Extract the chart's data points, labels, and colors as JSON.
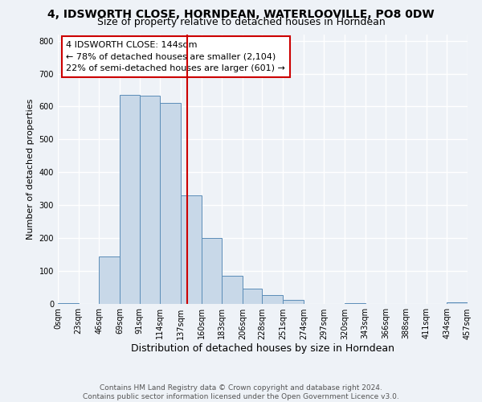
{
  "title": "4, IDSWORTH CLOSE, HORNDEAN, WATERLOOVILLE, PO8 0DW",
  "subtitle": "Size of property relative to detached houses in Horndean",
  "xlabel": "Distribution of detached houses by size in Horndean",
  "ylabel": "Number of detached properties",
  "bin_edges": [
    0,
    23,
    46,
    69,
    91,
    114,
    137,
    160,
    183,
    206,
    228,
    251,
    274,
    297,
    320,
    343,
    366,
    388,
    411,
    434,
    457
  ],
  "bin_labels": [
    "0sqm",
    "23sqm",
    "46sqm",
    "69sqm",
    "91sqm",
    "114sqm",
    "137sqm",
    "160sqm",
    "183sqm",
    "206sqm",
    "228sqm",
    "251sqm",
    "274sqm",
    "297sqm",
    "320sqm",
    "343sqm",
    "366sqm",
    "388sqm",
    "411sqm",
    "434sqm",
    "457sqm"
  ],
  "counts": [
    2,
    0,
    143,
    635,
    632,
    610,
    330,
    200,
    84,
    46,
    26,
    12,
    0,
    0,
    2,
    0,
    0,
    0,
    0,
    4
  ],
  "bar_color": "#c8d8e8",
  "bar_edge_color": "#5b8db8",
  "vline_x": 144,
  "vline_color": "#cc0000",
  "annotation_line1": "4 IDSWORTH CLOSE: 144sqm",
  "annotation_line2": "← 78% of detached houses are smaller (2,104)",
  "annotation_line3": "22% of semi-detached houses are larger (601) →",
  "annotation_box_color": "#ffffff",
  "annotation_box_edge_color": "#cc0000",
  "ylim": [
    0,
    820
  ],
  "yticks": [
    0,
    100,
    200,
    300,
    400,
    500,
    600,
    700,
    800
  ],
  "footer_text": "Contains HM Land Registry data © Crown copyright and database right 2024.\nContains public sector information licensed under the Open Government Licence v3.0.",
  "background_color": "#eef2f7",
  "plot_background_color": "#eef2f7",
  "grid_color": "#ffffff",
  "title_fontsize": 10,
  "subtitle_fontsize": 9,
  "ylabel_fontsize": 8,
  "xlabel_fontsize": 9,
  "tick_fontsize": 7,
  "annotation_fontsize": 8,
  "footer_fontsize": 6.5
}
